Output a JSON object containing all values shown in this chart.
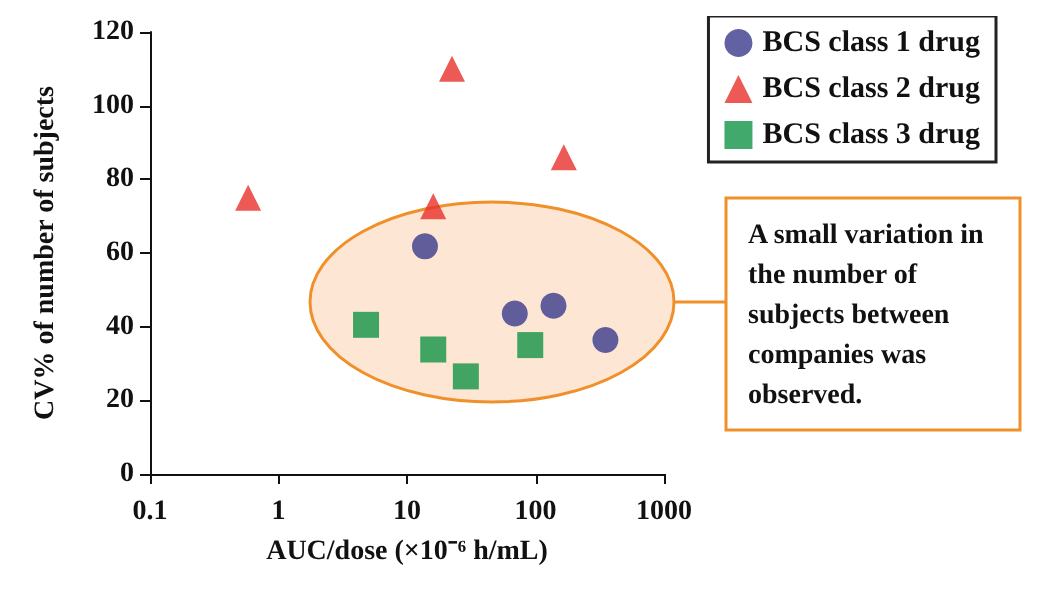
{
  "chart_data": {
    "type": "scatter",
    "xlabel": "AUC/dose (×10⁻⁶ h/mL)",
    "ylabel": "CV% of number of subjects",
    "series": [
      {
        "name": "BCS class 1 drug",
        "color": "#3a3a8c",
        "marker": "circle",
        "x": [
          13.8,
          69,
          138,
          350
        ],
        "values": [
          61.8,
          43.6,
          45.7,
          36.4
        ]
      },
      {
        "name": "BCS class 2 drug",
        "color": "#e8302a",
        "marker": "triangle",
        "x": [
          0.58,
          16,
          22.4,
          166
        ],
        "values": [
          75,
          72.7,
          110,
          86
        ]
      },
      {
        "name": "BCS class 3 drug",
        "color": "#129447",
        "marker": "square",
        "x": [
          4.8,
          16,
          28.7,
          91
        ],
        "values": [
          40.5,
          33.8,
          26.5,
          35
        ]
      }
    ],
    "xlim": [
      0.1,
      1000
    ],
    "xticks": [
      0.1,
      1,
      10,
      100,
      1000
    ],
    "log": "x",
    "ylim": [
      0,
      120
    ],
    "yticks": [
      0,
      20,
      40,
      60,
      80,
      100,
      120
    ],
    "legend": "top right",
    "grid": false,
    "annotations": [
      "A small variation in the number of subjects between companies was observed."
    ]
  }
}
